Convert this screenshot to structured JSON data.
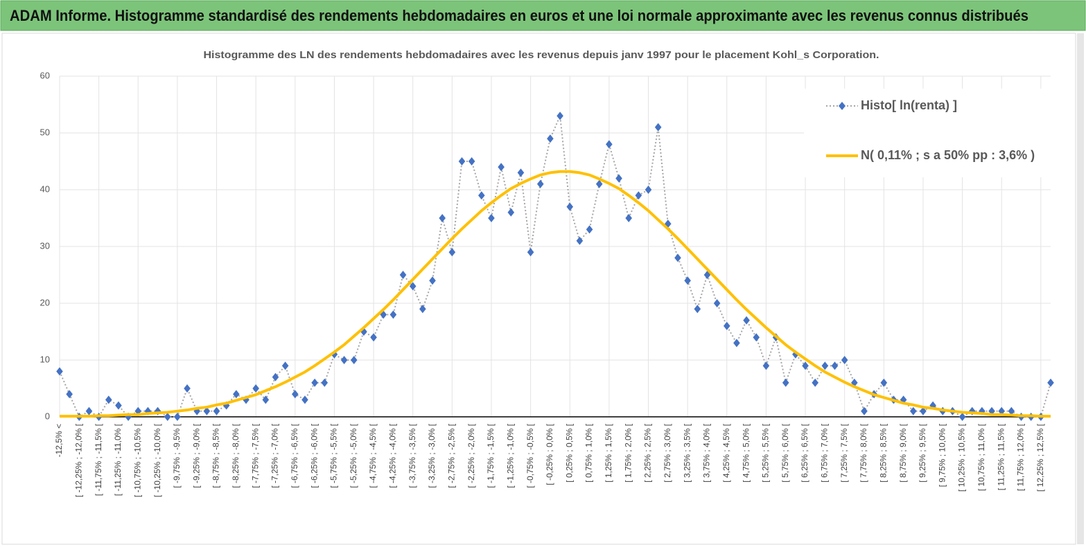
{
  "header": {
    "title": "ADAM Informe. Histogramme standardisé des rendements hebdomadaires en euros et une loi normale approximante avec les revenus connus distribués"
  },
  "chart_data": {
    "type": "line",
    "title": "Histogramme  des LN des rendements hebdomadaires avec les revenus depuis janv 1997 pour le placement Kohl_s Corporation.",
    "categories": [
      "-12,5% <",
      null,
      "[ -12,25% ; -12,0% [",
      null,
      "[ -11,75% ; -11,5% [",
      null,
      "[ -11,25% ; -11,0% [",
      null,
      "[ -10,75% ; -10,5% [",
      null,
      "[ -10,25% ; -10,0% [",
      null,
      "[ -9,75% ; -9,5% [",
      null,
      "[ -9,25% ; -9,0% [",
      null,
      "[ -8,75% ; -8,5% [",
      null,
      "[ -8,25% ; -8,0% [",
      null,
      "[ -7,75% ; -7,5% [",
      null,
      "[ -7,25% ; -7,0% [",
      null,
      "[ -6,75% ; -6,5% [",
      null,
      "[ -6,25% ; -6,0% [",
      null,
      "[ -5,75% ; -5,5% [",
      null,
      "[ -5,25% ; -5,0% [",
      null,
      "[ -4,75% ; -4,5% [",
      null,
      "[ -4,25% ; -4,0% [",
      null,
      "[ -3,75% ; -3,5% [",
      null,
      "[ -3,25% ; -3,0% [",
      null,
      "[ -2,75% ; -2,5% [",
      null,
      "[ -2,25% ; -2,0% [",
      null,
      "[ -1,75% ; -1,5% [",
      null,
      "[ -1,25% ; -1,0% [",
      null,
      "[ -0,75% ; -0,5% [",
      null,
      "[ -0,25% ; 0,0% [",
      null,
      "[ 0,25% ; 0,5% [",
      null,
      "[ 0,75% ; 1,0% [",
      null,
      "[ 1,25% ; 1,5% [",
      null,
      "[ 1,75% ; 2,0% [",
      null,
      "[ 2,25% ; 2,5% [",
      null,
      "[ 2,75% ; 3,0% [",
      null,
      "[ 3,25% ; 3,5% [",
      null,
      "[ 3,75% ; 4,0% [",
      null,
      "[ 4,25% ; 4,5% [",
      null,
      "[ 4,75% ; 5,0% [",
      null,
      "[ 5,25% ; 5,5% [",
      null,
      "[ 5,75% ; 6,0% [",
      null,
      "[ 6,25% ; 6,5% [",
      null,
      "[ 6,75% ; 7,0% [",
      null,
      "[ 7,25% ; 7,5% [",
      null,
      "[ 7,75% ; 8,0% [",
      null,
      "[ 8,25% ; 8,5% [",
      null,
      "[ 8,75% ; 9,0% [",
      null,
      "[ 9,25% ; 9,5% [",
      null,
      "[ 9,75% ; 10,0% [",
      null,
      "[ 10,25% ; 10,5% [",
      null,
      "[ 10,75% ; 11,0% [",
      null,
      "[ 11,25% ; 11,5% [",
      null,
      "[ 11,75% ; 12,0% [",
      null,
      "[ 12,25% ; 12,5% [",
      null
    ],
    "series": [
      {
        "name": "Histo[ ln(renta) ]",
        "color": "#4472c4",
        "line_color": "#a5a5a5",
        "marker": "diamond",
        "values": [
          8,
          4,
          0,
          1,
          0,
          3,
          2,
          0,
          1,
          1,
          1,
          0,
          0,
          5,
          1,
          1,
          1,
          2,
          4,
          3,
          5,
          3,
          7,
          9,
          4,
          3,
          6,
          6,
          11,
          10,
          10,
          15,
          14,
          18,
          18,
          25,
          23,
          19,
          24,
          35,
          29,
          45,
          45,
          39,
          35,
          44,
          36,
          43,
          29,
          41,
          49,
          53,
          37,
          31,
          33,
          41,
          48,
          42,
          35,
          39,
          40,
          51,
          34,
          28,
          24,
          19,
          25,
          20,
          16,
          13,
          17,
          14,
          9,
          14,
          6,
          11,
          9,
          6,
          9,
          9,
          10,
          6,
          1,
          4,
          6,
          3,
          3,
          1,
          1,
          2,
          1,
          1,
          0,
          1,
          1,
          1,
          1,
          1,
          0,
          0,
          0,
          6
        ]
      },
      {
        "name": "N( 0,11% ; s a 50% pp : 3,6% )",
        "color": "#ffc000",
        "values": [
          0.1,
          0.1,
          0.1,
          0.1,
          0.2,
          0.2,
          0.3,
          0.4,
          0.4,
          0.6,
          0.7,
          0.8,
          1.0,
          1.2,
          1.5,
          1.7,
          2.1,
          2.4,
          2.9,
          3.4,
          3.9,
          4.6,
          5.3,
          6.1,
          7.0,
          7.9,
          9.0,
          10.2,
          11.4,
          12.7,
          14.2,
          15.7,
          17.3,
          18.9,
          20.6,
          22.4,
          24.2,
          26.0,
          27.8,
          29.6,
          31.4,
          33.1,
          34.7,
          36.3,
          37.7,
          39.0,
          40.2,
          41.1,
          41.9,
          42.6,
          43.0,
          43.2,
          43.2,
          43.0,
          42.6,
          41.9,
          41.1,
          40.2,
          39.0,
          37.7,
          36.3,
          34.7,
          33.1,
          31.4,
          29.6,
          27.8,
          26.0,
          24.2,
          22.4,
          20.6,
          18.9,
          17.3,
          15.7,
          14.2,
          12.7,
          11.4,
          10.2,
          9.0,
          7.9,
          7.0,
          6.1,
          5.3,
          4.6,
          3.9,
          3.4,
          2.9,
          2.4,
          2.1,
          1.7,
          1.5,
          1.2,
          1.0,
          0.8,
          0.7,
          0.6,
          0.4,
          0.4,
          0.3,
          0.2,
          0.2,
          0.1,
          0.1
        ]
      }
    ],
    "ylim": [
      0,
      60
    ],
    "yticks": [
      0,
      10,
      20,
      30,
      40,
      50,
      60
    ],
    "grid": true,
    "legend": "upper right"
  }
}
